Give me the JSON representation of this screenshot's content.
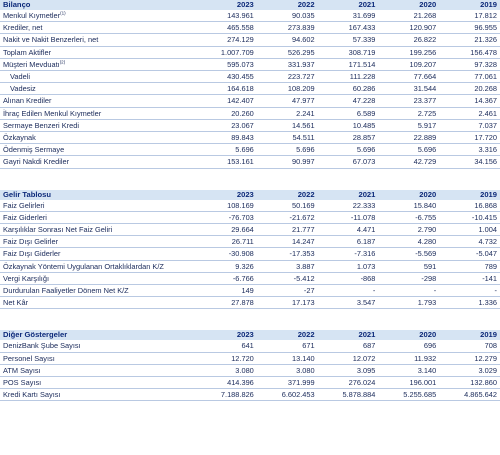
{
  "years": [
    "2023",
    "2022",
    "2021",
    "2020",
    "2019"
  ],
  "sections": [
    {
      "title": "Bilanço",
      "rows": [
        {
          "label": "Menkul Kıymetler",
          "sup": "(1)",
          "values": [
            "143.961",
            "90.035",
            "31.699",
            "21.268",
            "17.812"
          ]
        },
        {
          "label": "Krediler, net",
          "values": [
            "465.558",
            "273.839",
            "167.433",
            "120.907",
            "96.955"
          ]
        },
        {
          "label": "Nakit ve Nakit Benzerleri, net",
          "values": [
            "274.129",
            "94.602",
            "57.339",
            "26.822",
            "21.326"
          ]
        },
        {
          "label": "Toplam Aktifler",
          "values": [
            "1.007.709",
            "526.295",
            "308.719",
            "199.256",
            "156.478"
          ]
        },
        {
          "label": "Müşteri Mevduatı",
          "sup": "(2)",
          "values": [
            "595.073",
            "331.937",
            "171.514",
            "109.207",
            "97.328"
          ]
        },
        {
          "label": "Vadeli",
          "indent": true,
          "values": [
            "430.455",
            "223.727",
            "111.228",
            "77.664",
            "77.061"
          ]
        },
        {
          "label": "Vadesiz",
          "indent": true,
          "values": [
            "164.618",
            "108.209",
            "60.286",
            "31.544",
            "20.268"
          ]
        },
        {
          "label": "Alınan Krediler",
          "values": [
            "142.407",
            "47.977",
            "47.228",
            "23.377",
            "14.367"
          ]
        },
        {
          "label": "İhraç Edilen Menkul Kıymetler",
          "values": [
            "20.260",
            "2.241",
            "6.589",
            "2.725",
            "2.461"
          ]
        },
        {
          "label": "Sermaye Benzeri Kredi",
          "values": [
            "23.067",
            "14.561",
            "10.485",
            "5.917",
            "7.037"
          ]
        },
        {
          "label": "Özkaynak",
          "values": [
            "89.843",
            "54.511",
            "28.857",
            "22.889",
            "17.720"
          ]
        },
        {
          "label": "Ödenmiş Sermaye",
          "values": [
            "5.696",
            "5.696",
            "5.696",
            "5.696",
            "3.316"
          ]
        },
        {
          "label": "Gayri Nakdi Krediler",
          "values": [
            "153.161",
            "90.997",
            "67.073",
            "42.729",
            "34.156"
          ]
        }
      ]
    },
    {
      "title": "Gelir Tablosu",
      "rows": [
        {
          "label": "Faiz Gelirleri",
          "values": [
            "108.169",
            "50.169",
            "22.333",
            "15.840",
            "16.868"
          ]
        },
        {
          "label": "Faiz Giderleri",
          "values": [
            "-76.703",
            "-21.672",
            "-11.078",
            "-6.755",
            "-10.415"
          ]
        },
        {
          "label": "Karşılıklar Sonrası Net Faiz Geliri",
          "values": [
            "29.664",
            "21.777",
            "4.471",
            "2.790",
            "1.004"
          ]
        },
        {
          "label": "Faiz Dışı Gelirler",
          "values": [
            "26.711",
            "14.247",
            "6.187",
            "4.280",
            "4.732"
          ]
        },
        {
          "label": "Faiz Dışı Giderler",
          "values": [
            "-30.908",
            "-17.353",
            "-7.316",
            "-5.569",
            "-5.047"
          ]
        },
        {
          "label": "Özkaynak Yöntemi Uygulanan Ortaklıklardan K/Z",
          "values": [
            "9.326",
            "3.887",
            "1.073",
            "591",
            "789"
          ]
        },
        {
          "label": "Vergi Karşılığı",
          "values": [
            "-6.766",
            "-5.412",
            "-868",
            "-298",
            "-141"
          ]
        },
        {
          "label": "Durdurulan Faaliyetler Dönem Net K/Z",
          "values": [
            "149",
            "-27",
            "-",
            "-",
            "-"
          ]
        },
        {
          "label": "Net Kâr",
          "values": [
            "27.878",
            "17.173",
            "3.547",
            "1.793",
            "1.336"
          ]
        }
      ]
    },
    {
      "title": "Diğer Göstergeler",
      "rows": [
        {
          "label": "DenizBank Şube Sayısı",
          "values": [
            "641",
            "671",
            "687",
            "696",
            "708"
          ]
        },
        {
          "label": "Personel Sayısı",
          "values": [
            "12.720",
            "13.140",
            "12.072",
            "11.932",
            "12.279"
          ]
        },
        {
          "label": "ATM Sayısı",
          "values": [
            "3.080",
            "3.080",
            "3.095",
            "3.140",
            "3.029"
          ]
        },
        {
          "label": "POS Sayısı",
          "values": [
            "414.396",
            "371.999",
            "276.024",
            "196.001",
            "132.860"
          ]
        },
        {
          "label": "Kredi Kartı Sayısı",
          "values": [
            "7.188.826",
            "6.602.453",
            "5.878.884",
            "5.255.685",
            "4.865.642"
          ]
        }
      ]
    }
  ]
}
